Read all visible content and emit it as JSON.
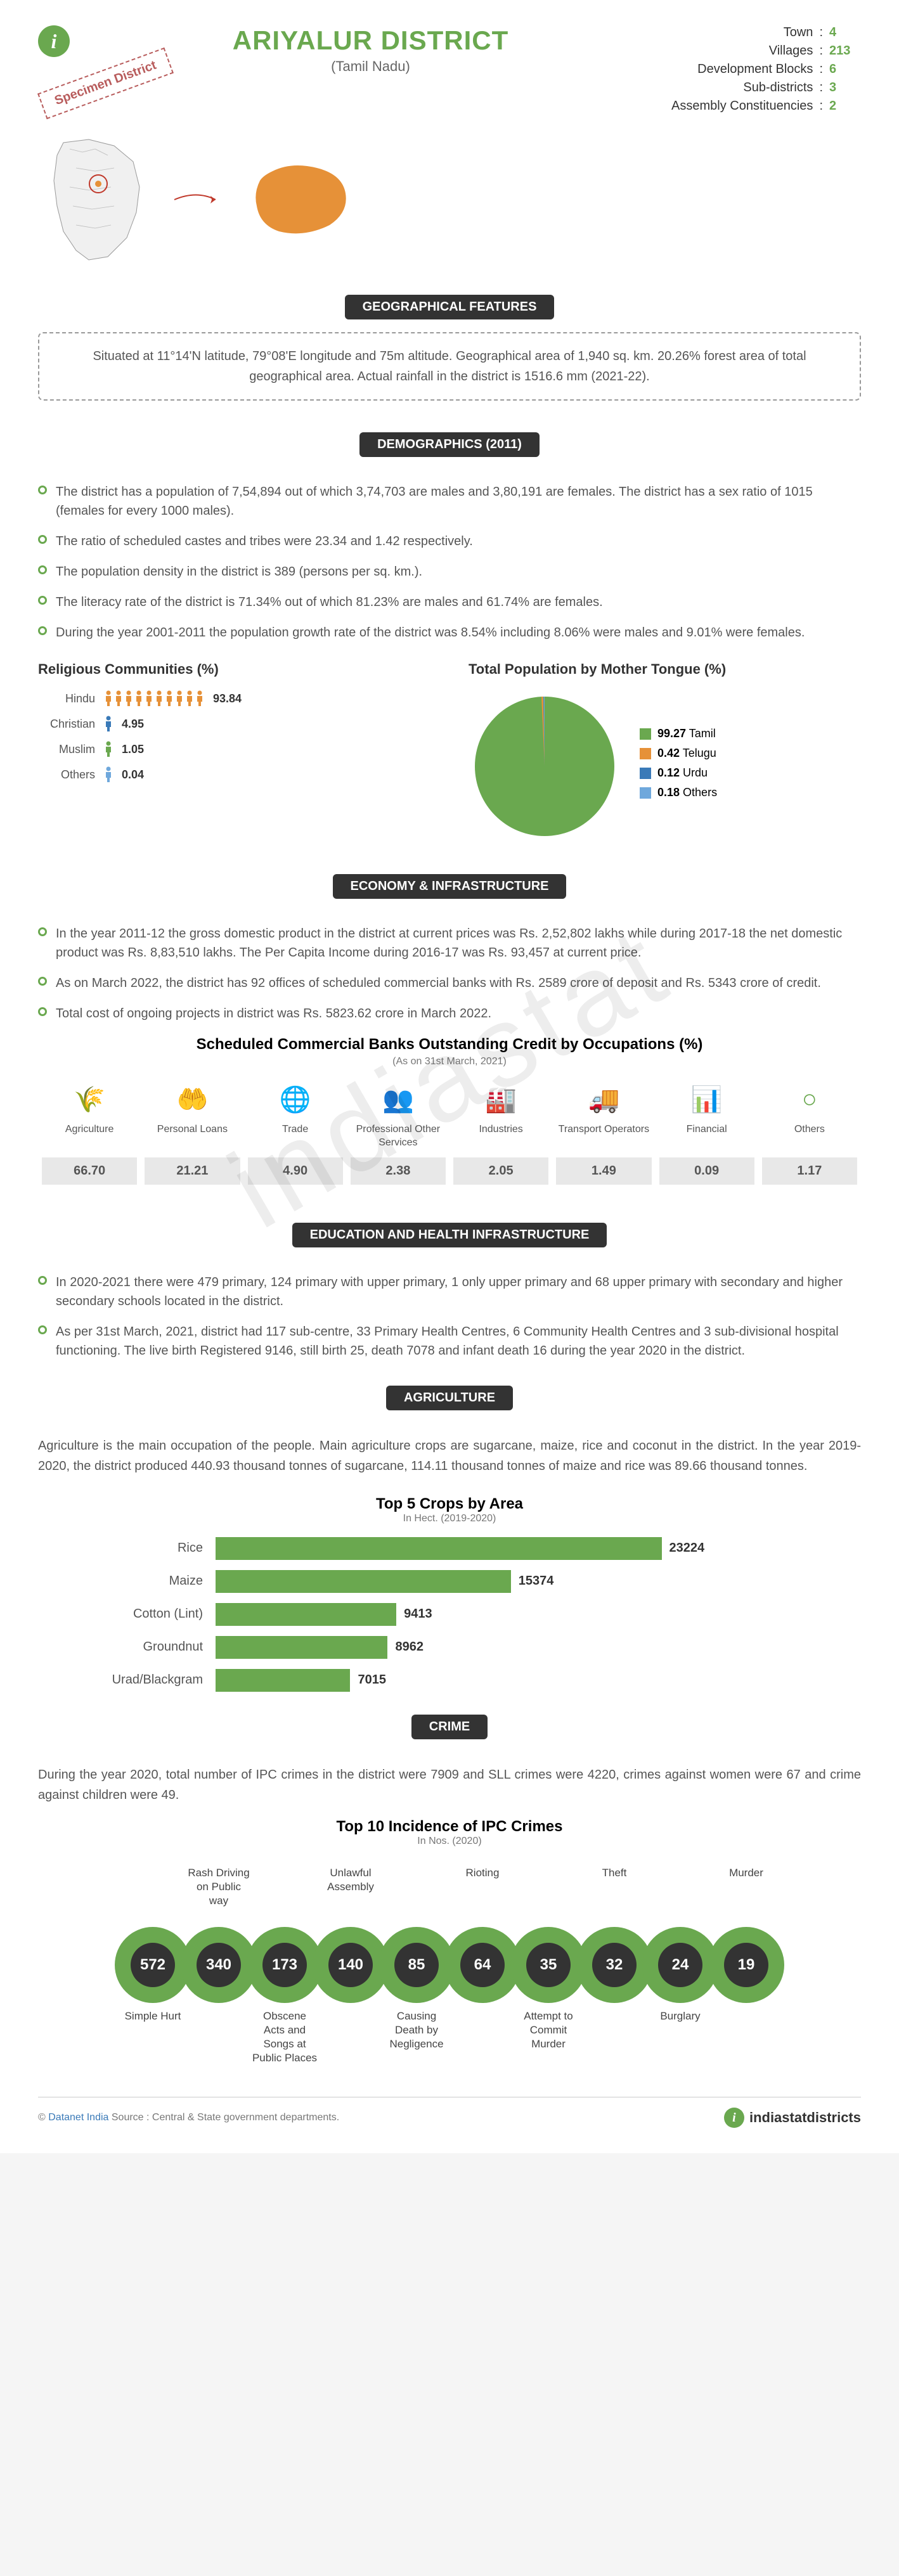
{
  "header": {
    "title": "ARIYALUR DISTRICT",
    "state": "(Tamil Nadu)",
    "specimen": "Specimen District",
    "stats": [
      {
        "label": "Town",
        "val": "4"
      },
      {
        "label": "Villages",
        "val": "213"
      },
      {
        "label": "Development Blocks",
        "val": "6"
      },
      {
        "label": "Sub-districts",
        "val": "3"
      },
      {
        "label": "Assembly Constituencies",
        "val": "2"
      }
    ]
  },
  "colors": {
    "green": "#6aa84f",
    "orange": "#e69138",
    "blue": "#3a7ab8",
    "lightblue": "#6fa8dc",
    "grey": "#e8e8e8"
  },
  "geo": {
    "tag": "GEOGRAPHICAL FEATURES",
    "text": "Situated at 11°14'N latitude, 79°08'E longitude and 75m altitude. Geographical area of 1,940 sq. km. 20.26% forest area of total geographical area. Actual rainfall in the district is 1516.6 mm (2021-22)."
  },
  "demo": {
    "tag": "DEMOGRAPHICS (2011)",
    "bullets": [
      "The district has a population of 7,54,894 out of which 3,74,703 are males and 3,80,191 are females. The district has a sex ratio of 1015 (females for every 1000 males).",
      "The ratio of scheduled castes and tribes were 23.34 and 1.42 respectively.",
      "The population density in the district is 389 (persons per sq. km.).",
      "The literacy rate of the district is 71.34% out of which 81.23% are males and 61.74% are females.",
      "During the year 2001-2011 the population growth rate of the district was 8.54% including 8.06% were males and 9.01% were females."
    ],
    "religious_title": "Religious Communities (%)",
    "religions": [
      {
        "name": "Hindu",
        "val": "93.84",
        "color": "#e69138",
        "count": 10
      },
      {
        "name": "Christian",
        "val": "4.95",
        "color": "#3a7ab8",
        "count": 1
      },
      {
        "name": "Muslim",
        "val": "1.05",
        "color": "#6aa84f",
        "count": 1
      },
      {
        "name": "Others",
        "val": "0.04",
        "color": "#6fa8dc",
        "count": 1
      }
    ],
    "tongue_title": "Total Population by Mother Tongue (%)",
    "tongues": [
      {
        "name": "Tamil",
        "val": "99.27",
        "color": "#6aa84f"
      },
      {
        "name": "Telugu",
        "val": "0.42",
        "color": "#e69138"
      },
      {
        "name": "Urdu",
        "val": "0.12",
        "color": "#3a7ab8"
      },
      {
        "name": "Others",
        "val": "0.18",
        "color": "#6fa8dc"
      }
    ]
  },
  "econ": {
    "tag": "ECONOMY & INFRASTRUCTURE",
    "bullets": [
      "In the year 2011-12 the gross domestic product in the district at current prices was Rs. 2,52,802 lakhs while during 2017-18 the net domestic product was Rs. 8,83,510 lakhs. The Per Capita Income during 2016-17 was Rs. 93,457 at current price.",
      "As on March 2022, the district has 92 offices of scheduled commercial banks with Rs. 2589 crore of deposit and Rs. 5343 crore of credit.",
      "Total cost of ongoing projects in district was Rs. 5823.62 crore in March 2022."
    ],
    "banks_title": "Scheduled Commercial Banks Outstanding Credit by Occupations (%)",
    "banks_sub": "(As on 31st March, 2021)",
    "banks": [
      {
        "label": "Agriculture",
        "val": "66.70",
        "icon": "🌾"
      },
      {
        "label": "Personal Loans",
        "val": "21.21",
        "icon": "🤲"
      },
      {
        "label": "Trade",
        "val": "4.90",
        "icon": "🌐"
      },
      {
        "label": "Professional Other Services",
        "val": "2.38",
        "icon": "👥"
      },
      {
        "label": "Industries",
        "val": "2.05",
        "icon": "🏭"
      },
      {
        "label": "Transport Operators",
        "val": "1.49",
        "icon": "🚚"
      },
      {
        "label": "Financial",
        "val": "0.09",
        "icon": "📊"
      },
      {
        "label": "Others",
        "val": "1.17",
        "icon": "○"
      }
    ]
  },
  "edu": {
    "tag": "EDUCATION AND HEALTH INFRASTRUCTURE",
    "bullets": [
      "In 2020-2021 there were 479 primary, 124 primary with upper primary, 1 only upper primary and 68 upper primary with secondary and higher secondary schools located in the district.",
      "As per 31st March, 2021, district had 117 sub-centre, 33 Primary Health Centres, 6 Community Health Centres and 3 sub-divisional hospital functioning. The live birth Registered 9146, still birth 25, death 7078 and infant death 16 during the year 2020 in the district."
    ]
  },
  "agri": {
    "tag": "AGRICULTURE",
    "text": "Agriculture is the main occupation of the people. Main agriculture crops are sugarcane, maize, rice and coconut in the district. In the year 2019-2020, the district produced 440.93 thousand tonnes of sugarcane, 114.11 thousand tonnes of maize and rice was 89.66 thousand tonnes.",
    "crops_title": "Top 5 Crops by Area",
    "crops_sub": "In Hect. (2019-2020)",
    "crops": [
      {
        "name": "Rice",
        "val": 23224
      },
      {
        "name": "Maize",
        "val": 15374
      },
      {
        "name": "Cotton (Lint)",
        "val": 9413
      },
      {
        "name": "Groundnut",
        "val": 8962
      },
      {
        "name": "Urad/Blackgram",
        "val": 7015
      }
    ],
    "crop_max": 23224
  },
  "crime": {
    "tag": "CRIME",
    "text": "During the year 2020, total number of IPC crimes in the district were 7909 and SLL crimes were 4220, crimes against women were 67 and crime against children were 49.",
    "title": "Top 10 Incidence of IPC Crimes",
    "sub": "In Nos. (2020)",
    "items": [
      {
        "label_top": "",
        "label_bottom": "Simple Hurt",
        "val": "572"
      },
      {
        "label_top": "Rash Driving on Public way",
        "label_bottom": "",
        "val": "340"
      },
      {
        "label_top": "",
        "label_bottom": "Obscene Acts and Songs at Public Places",
        "val": "173"
      },
      {
        "label_top": "Unlawful Assembly",
        "label_bottom": "",
        "val": "140"
      },
      {
        "label_top": "",
        "label_bottom": "Causing Death by Negligence",
        "val": "85"
      },
      {
        "label_top": "Rioting",
        "label_bottom": "",
        "val": "64"
      },
      {
        "label_top": "",
        "label_bottom": "Attempt to Commit Murder",
        "val": "35"
      },
      {
        "label_top": "Theft",
        "label_bottom": "",
        "val": "32"
      },
      {
        "label_top": "",
        "label_bottom": "Burglary",
        "val": "24"
      },
      {
        "label_top": "Murder",
        "label_bottom": "",
        "val": "19"
      }
    ]
  },
  "footer": {
    "left_pre": "© ",
    "left_dn": "Datanet India",
    "left_post": " Source : Central & State government departments.",
    "right": "indiastatdistricts"
  },
  "watermark": "indiastat"
}
